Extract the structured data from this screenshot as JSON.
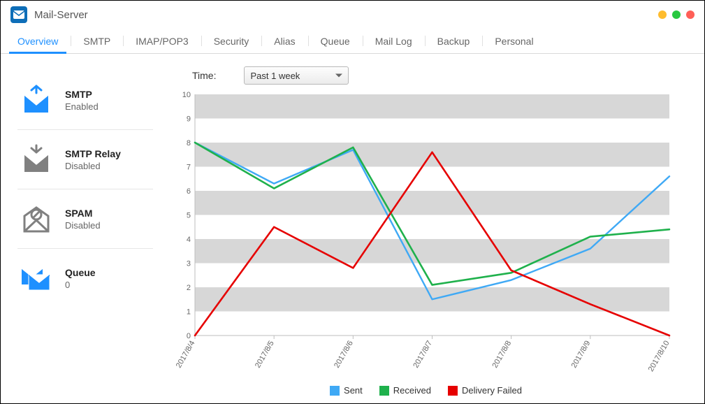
{
  "window": {
    "title": "Mail-Server",
    "icon_bg": "#0e6eb8"
  },
  "tabs": [
    {
      "label": "Overview",
      "active": true
    },
    {
      "label": "SMTP",
      "active": false
    },
    {
      "label": "IMAP/POP3",
      "active": false
    },
    {
      "label": "Security",
      "active": false
    },
    {
      "label": "Alias",
      "active": false
    },
    {
      "label": "Queue",
      "active": false
    },
    {
      "label": "Mail Log",
      "active": false
    },
    {
      "label": "Backup",
      "active": false
    },
    {
      "label": "Personal",
      "active": false
    }
  ],
  "sidebar": {
    "items": [
      {
        "label": "SMTP",
        "status": "Enabled",
        "icon": "smtp",
        "color": "#1e90ff"
      },
      {
        "label": "SMTP Relay",
        "status": "Disabled",
        "icon": "relay",
        "color": "#808080"
      },
      {
        "label": "SPAM",
        "status": "Disabled",
        "icon": "spam",
        "color": "#808080"
      },
      {
        "label": "Queue",
        "status": "0",
        "icon": "queue",
        "color": "#1e90ff"
      }
    ]
  },
  "controls": {
    "time_label": "Time:",
    "time_value": "Past 1 week"
  },
  "chart": {
    "type": "line",
    "ylim": [
      0,
      10
    ],
    "ytick_step": 1,
    "band_color": "#d7d7d7",
    "band_alt_color": "#ffffff",
    "axis_color": "#bdbdbd",
    "tick_label_color": "#666666",
    "tick_fontsize": 11,
    "x_labels": [
      "2017/8/4",
      "2017/8/5",
      "2017/8/6",
      "2017/8/7",
      "2017/8/8",
      "2017/8/9",
      "2017/8/10"
    ],
    "series": [
      {
        "name": "Sent",
        "color": "#3fa9f5",
        "width": 2.4,
        "values": [
          8.0,
          6.3,
          7.7,
          1.5,
          2.3,
          3.6,
          6.6
        ]
      },
      {
        "name": "Received",
        "color": "#1fb14c",
        "width": 2.6,
        "values": [
          8.0,
          6.1,
          7.8,
          2.1,
          2.6,
          4.1,
          4.4
        ]
      },
      {
        "name": "Delivery Failed",
        "color": "#e60000",
        "width": 2.6,
        "values": [
          0.0,
          4.5,
          2.8,
          7.6,
          2.7,
          1.3,
          0.0
        ]
      }
    ],
    "legend": {
      "items": [
        {
          "label": "Sent",
          "color": "#3fa9f5"
        },
        {
          "label": "Received",
          "color": "#1fb14c"
        },
        {
          "label": "Delivery Failed",
          "color": "#e60000"
        }
      ]
    }
  }
}
